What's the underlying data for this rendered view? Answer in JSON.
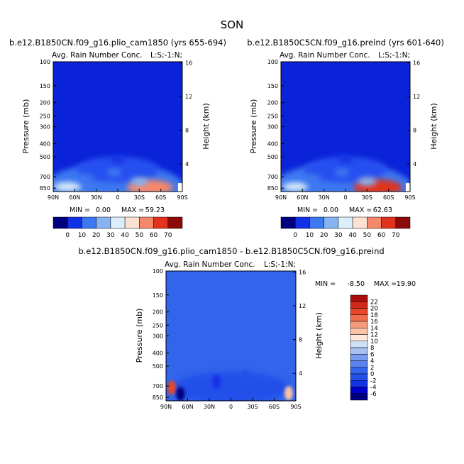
{
  "page": {
    "season": "SON"
  },
  "colors": {
    "palette": [
      "#00007f",
      "#0000cc",
      "#1230e6",
      "#2850f0",
      "#3c78f0",
      "#5a96f0",
      "#87b4f0",
      "#b4d2f0",
      "#dceefa",
      "#fde2d4",
      "#f9b49a",
      "#f5876a",
      "#ef5a3c",
      "#e1321e",
      "#c01a0e",
      "#8c0a0a"
    ],
    "diff_palette": [
      "#00007f",
      "#0000cc",
      "#1432e6",
      "#2350ea",
      "#3264ec",
      "#5a82f0",
      "#7a9cf0",
      "#a8c0f2",
      "#cfe0f8",
      "#fde8da",
      "#fbc2a6",
      "#f59a7a",
      "#ef6e4e",
      "#e6462a",
      "#d2281a",
      "#a80e0e"
    ]
  },
  "panels": [
    {
      "case_title": "b.e12.B1850CN.f09_g16.plio_cam1850 (yrs 655-694)",
      "var_title": "Avg. Rain Number Conc.",
      "region": "L:S;-1:N;",
      "min_label": "MIN =",
      "min_value": "0.00",
      "max_label": "MAX =",
      "max_value": "59.23"
    },
    {
      "case_title": "b.e12.B1850C5CN.f09_g16.preind (yrs 601-640)",
      "var_title": "Avg. Rain Number Conc.",
      "region": "L:S;-1:N;",
      "min_label": "MIN =",
      "min_value": "0.00",
      "max_label": "MAX =",
      "max_value": "62.63"
    },
    {
      "case_title": "b.e12.B1850CN.f09_g16.plio_cam1850 - b.e12.B1850C5CN.f09_g16.preind",
      "var_title": "Avg. Rain Number Conc.",
      "region": "L:S;-1:N;",
      "min_label": "MIN =",
      "min_value": "-8.50",
      "max_label": "MAX =",
      "max_value": "19.90"
    }
  ],
  "chart_data": [
    {
      "type": "heatmap",
      "title": "Avg. Rain Number Conc.",
      "xlabel": "",
      "ylabel": "Pressure (mb)",
      "y2label": "Height (km)",
      "x_ticks": [
        "90N",
        "60N",
        "30N",
        "0",
        "30S",
        "60S",
        "90S"
      ],
      "y_ticks": [
        "100",
        "150",
        "200",
        "250",
        "300",
        "400",
        "500",
        "700",
        "850"
      ],
      "y2_ticks": [
        "16",
        "12",
        "8",
        "4"
      ],
      "min": 0.0,
      "max": 59.23,
      "levels": [
        0,
        10,
        20,
        30,
        40,
        50,
        60,
        70
      ],
      "colorbar_labels": [
        "0",
        "10",
        "20",
        "30",
        "40",
        "50",
        "60",
        "70"
      ],
      "features": [
        {
          "lat": 70,
          "p": 830,
          "value": 35
        },
        {
          "lat": 45,
          "p": 720,
          "value": 18
        },
        {
          "lat": -45,
          "p": 840,
          "value": 59
        },
        {
          "lat": -30,
          "p": 760,
          "value": 22
        },
        {
          "lat": 5,
          "p": 650,
          "value": 12
        },
        {
          "lat": 0,
          "p": 520,
          "value": 6
        }
      ]
    },
    {
      "type": "heatmap",
      "title": "Avg. Rain Number Conc.",
      "xlabel": "",
      "ylabel": "Pressure (mb)",
      "y2label": "Height (km)",
      "x_ticks": [
        "90N",
        "60N",
        "30N",
        "0",
        "30S",
        "60S",
        "90S"
      ],
      "y_ticks": [
        "100",
        "150",
        "200",
        "250",
        "300",
        "400",
        "500",
        "700",
        "850"
      ],
      "y2_ticks": [
        "16",
        "12",
        "8",
        "4"
      ],
      "min": 0.0,
      "max": 62.63,
      "levels": [
        0,
        10,
        20,
        30,
        40,
        50,
        60,
        70
      ],
      "colorbar_labels": [
        "0",
        "10",
        "20",
        "30",
        "40",
        "50",
        "60",
        "70"
      ],
      "features": [
        {
          "lat": 70,
          "p": 830,
          "value": 33
        },
        {
          "lat": 45,
          "p": 720,
          "value": 17
        },
        {
          "lat": -45,
          "p": 840,
          "value": 62
        },
        {
          "lat": -30,
          "p": 760,
          "value": 24
        },
        {
          "lat": 5,
          "p": 650,
          "value": 12
        },
        {
          "lat": 0,
          "p": 520,
          "value": 6
        }
      ]
    },
    {
      "type": "heatmap",
      "title": "Avg. Rain Number Conc.",
      "xlabel": "",
      "ylabel": "Pressure (mb)",
      "y2label": "Height (km)",
      "x_ticks": [
        "90N",
        "60N",
        "30N",
        "0",
        "30S",
        "60S",
        "90S"
      ],
      "y_ticks": [
        "100",
        "150",
        "200",
        "250",
        "300",
        "400",
        "500",
        "700",
        "850"
      ],
      "y2_ticks": [
        "16",
        "12",
        "8",
        "4"
      ],
      "min": -8.5,
      "max": 19.9,
      "levels": [
        -6,
        -4,
        -2,
        0,
        2,
        4,
        6,
        8,
        10,
        12,
        14,
        16,
        18,
        20,
        22
      ],
      "colorbar_labels": [
        "22",
        "20",
        "18",
        "16",
        "14",
        "12",
        "10",
        "8",
        "6",
        "4",
        "2",
        "0",
        "-2",
        "-4",
        "-6"
      ],
      "features": [
        {
          "lat": 82,
          "p": 720,
          "value": 19.9
        },
        {
          "lat": -80,
          "p": 790,
          "value": 12
        },
        {
          "lat": 70,
          "p": 800,
          "value": -8.5
        },
        {
          "lat": 20,
          "p": 650,
          "value": -3
        },
        {
          "lat": -20,
          "p": 600,
          "value": -2
        }
      ]
    }
  ]
}
